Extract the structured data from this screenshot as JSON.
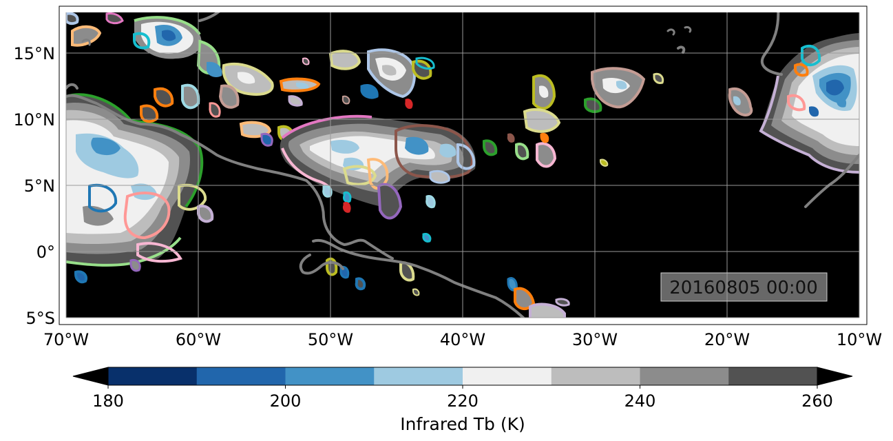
{
  "map": {
    "lon_ticks": [
      "70°W",
      "60°W",
      "50°W",
      "40°W",
      "30°W",
      "20°W",
      "10°W"
    ],
    "lat_ticks": [
      "15°N",
      "10°N",
      "5°N",
      "0°",
      "5°S"
    ],
    "lon_range": [
      -70,
      -10
    ],
    "lat_range": [
      -5,
      18
    ],
    "grid": true,
    "background_color": "#000000",
    "coastline_color": "#808080",
    "timestamp": "20160805 00:00"
  },
  "colorbar": {
    "label": "Infrared Tb (K)",
    "tick_labels": [
      "180",
      "200",
      "220",
      "240",
      "260"
    ],
    "range": [
      180,
      260
    ],
    "levels": [
      180,
      190,
      200,
      210,
      220,
      230,
      240,
      250,
      260
    ],
    "colors": [
      "#08306b",
      "#2166ac",
      "#4292c6",
      "#9ecae1",
      "#f0f0f0",
      "#bdbdbd",
      "#8c8c8c",
      "#525252"
    ],
    "extend": "both"
  },
  "tracked_cloud_outlines": [
    "#1f77b4",
    "#ff7f0e",
    "#2ca02c",
    "#d62728",
    "#9467bd",
    "#8c564b",
    "#e377c2",
    "#7f7f7f",
    "#bcbd22",
    "#17becf",
    "#aec7e8",
    "#ffbb78",
    "#98df8a",
    "#ff9896",
    "#c5b0d5",
    "#c49c94",
    "#f7b6d2",
    "#dbdb8d",
    "#9edae5"
  ]
}
